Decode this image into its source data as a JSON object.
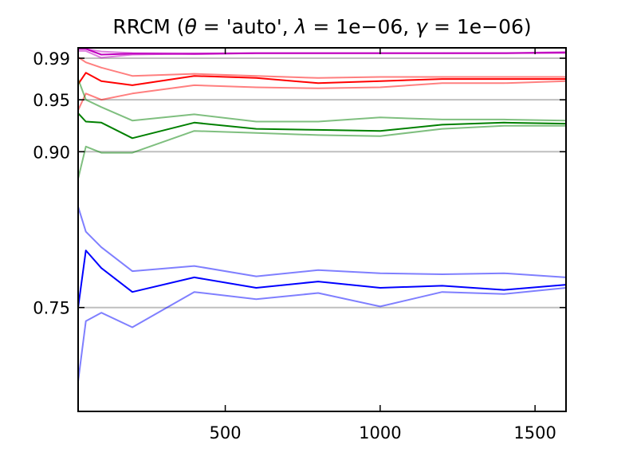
{
  "chart_data": {
    "type": "line",
    "title": "RRCM (θ='auto', λ=1e−06, γ=1e−06)",
    "title_parts": {
      "prefix": "RRCM (",
      "theta": "θ",
      "theta_value": "'auto', ",
      "lambda": "λ",
      "lambda_value": "1e−06, ",
      "gamma": "γ",
      "gamma_value": "1e−06)"
    },
    "xlabel": "",
    "ylabel": "",
    "xlim": [
      25,
      1600
    ],
    "ylim": [
      0.65,
      1.0
    ],
    "x_ticks": [
      "500",
      "1000",
      "1500"
    ],
    "x_tick_values": [
      500,
      1000,
      1500
    ],
    "y_ticks": [
      "0.75",
      "0.90",
      "0.95",
      "0.99"
    ],
    "y_tick_values": [
      0.75,
      0.9,
      0.95,
      0.99
    ],
    "reference_lines": [
      0.75,
      0.9,
      0.95,
      0.99
    ],
    "grid": false,
    "legend": false,
    "series": [
      {
        "group": "0.99",
        "color": "#bf00bf",
        "opacity": 0.5,
        "x": [
          25,
          50,
          100,
          200,
          400,
          600,
          800,
          1000,
          1200,
          1400,
          1600
        ],
        "y": [
          0.999,
          0.999,
          0.9965,
          0.995,
          0.9947,
          0.995,
          0.995,
          0.995,
          0.995,
          0.995,
          0.996
        ]
      },
      {
        "group": "0.99",
        "color": "#bf00bf",
        "opacity": 1.0,
        "x": [
          25,
          50,
          100,
          200,
          400,
          600,
          800,
          1000,
          1200,
          1400,
          1600
        ],
        "y": [
          0.999,
          0.999,
          0.9935,
          0.9945,
          0.994,
          0.9948,
          0.9948,
          0.9948,
          0.9948,
          0.9948,
          0.9955
        ]
      },
      {
        "group": "0.99",
        "color": "#bf00bf",
        "opacity": 0.5,
        "x": [
          25,
          50,
          100,
          200,
          400,
          600,
          800,
          1000,
          1200,
          1400,
          1600
        ],
        "y": [
          0.997,
          0.997,
          0.9905,
          0.9935,
          0.9945,
          0.9948,
          0.9948,
          0.9948,
          0.9948,
          0.995,
          0.995
        ]
      },
      {
        "group": "0.95",
        "color": "#ff0000",
        "opacity": 0.5,
        "x": [
          25,
          50,
          100,
          200,
          400,
          600,
          800,
          1000,
          1200,
          1400,
          1600
        ],
        "y": [
          0.991,
          0.986,
          0.981,
          0.973,
          0.975,
          0.973,
          0.971,
          0.972,
          0.972,
          0.972,
          0.972
        ]
      },
      {
        "group": "0.95",
        "color": "#ff0000",
        "opacity": 1.0,
        "x": [
          25,
          50,
          100,
          200,
          400,
          600,
          800,
          1000,
          1200,
          1400,
          1600
        ],
        "y": [
          0.965,
          0.976,
          0.968,
          0.964,
          0.973,
          0.971,
          0.966,
          0.968,
          0.97,
          0.97,
          0.97
        ]
      },
      {
        "group": "0.95",
        "color": "#ff0000",
        "opacity": 0.5,
        "x": [
          25,
          50,
          100,
          200,
          400,
          600,
          800,
          1000,
          1200,
          1400,
          1600
        ],
        "y": [
          0.94,
          0.956,
          0.95,
          0.956,
          0.964,
          0.962,
          0.961,
          0.962,
          0.966,
          0.966,
          0.968
        ]
      },
      {
        "group": "0.90",
        "color": "#008000",
        "opacity": 0.5,
        "x": [
          25,
          50,
          100,
          200,
          400,
          600,
          800,
          1000,
          1200,
          1400,
          1600
        ],
        "y": [
          0.97,
          0.95,
          0.943,
          0.93,
          0.936,
          0.929,
          0.929,
          0.933,
          0.931,
          0.931,
          0.93
        ]
      },
      {
        "group": "0.90",
        "color": "#008000",
        "opacity": 1.0,
        "x": [
          25,
          50,
          100,
          200,
          400,
          600,
          800,
          1000,
          1200,
          1400,
          1600
        ],
        "y": [
          0.937,
          0.929,
          0.928,
          0.913,
          0.928,
          0.922,
          0.921,
          0.92,
          0.926,
          0.928,
          0.927
        ]
      },
      {
        "group": "0.90",
        "color": "#008000",
        "opacity": 0.5,
        "x": [
          25,
          50,
          100,
          200,
          400,
          600,
          800,
          1000,
          1200,
          1400,
          1600
        ],
        "y": [
          0.874,
          0.905,
          0.899,
          0.899,
          0.92,
          0.918,
          0.916,
          0.915,
          0.922,
          0.925,
          0.925
        ]
      },
      {
        "group": "0.75",
        "color": "#0000ff",
        "opacity": 0.5,
        "x": [
          25,
          50,
          100,
          200,
          400,
          600,
          800,
          1000,
          1200,
          1400,
          1600
        ],
        "y": [
          0.847,
          0.823,
          0.808,
          0.785,
          0.79,
          0.78,
          0.786,
          0.783,
          0.782,
          0.783,
          0.779
        ]
      },
      {
        "group": "0.75",
        "color": "#0000ff",
        "opacity": 1.0,
        "x": [
          25,
          50,
          100,
          200,
          400,
          600,
          800,
          1000,
          1200,
          1400,
          1600
        ],
        "y": [
          0.75,
          0.805,
          0.788,
          0.765,
          0.779,
          0.769,
          0.775,
          0.769,
          0.771,
          0.767,
          0.772
        ]
      },
      {
        "group": "0.75",
        "color": "#0000ff",
        "opacity": 0.5,
        "x": [
          25,
          50,
          100,
          200,
          400,
          600,
          800,
          1000,
          1200,
          1400,
          1600
        ],
        "y": [
          0.679,
          0.737,
          0.745,
          0.731,
          0.765,
          0.758,
          0.764,
          0.751,
          0.765,
          0.763,
          0.769
        ]
      }
    ]
  }
}
